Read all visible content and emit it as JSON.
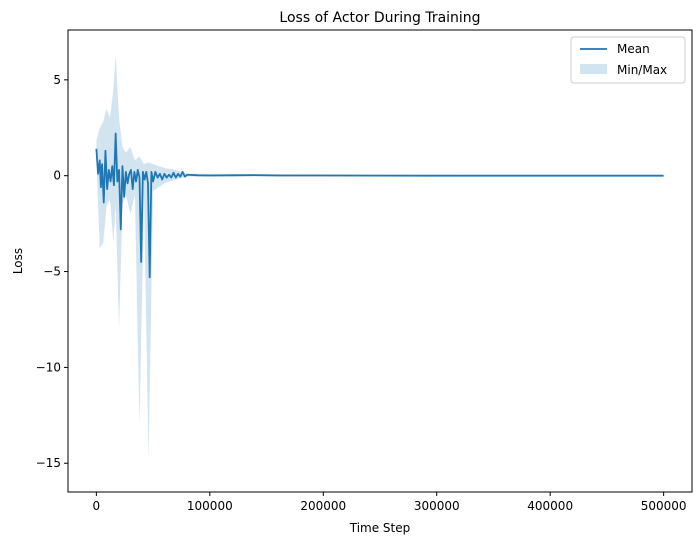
{
  "chart_data": {
    "type": "line",
    "title": "Loss of Actor During Training",
    "xlabel": "Time Step",
    "ylabel": "Loss",
    "xlim": [
      -25000,
      525000
    ],
    "ylim": [
      -16.5,
      7.6
    ],
    "x_ticks": [
      0,
      100000,
      200000,
      300000,
      400000,
      500000
    ],
    "x_tick_labels": [
      "0",
      "100000",
      "200000",
      "300000",
      "400000",
      "500000"
    ],
    "y_ticks": [
      5,
      0,
      -5,
      -10,
      -15
    ],
    "y_tick_labels": [
      "5",
      "0",
      "−5",
      "−10",
      "−15"
    ],
    "grid": false,
    "legend_position": "top-right",
    "colors": {
      "mean": "#1f77b4",
      "band": "#1f77b4"
    },
    "series": [
      {
        "name": "Mean",
        "style": "line",
        "x": [
          0,
          1500,
          3000,
          4000,
          5000,
          6500,
          8000,
          9500,
          11000,
          12500,
          14000,
          15500,
          17000,
          18500,
          20000,
          21500,
          23000,
          24500,
          26000,
          27500,
          29000,
          30500,
          32000,
          33500,
          35000,
          36500,
          38000,
          39500,
          41000,
          42500,
          44000,
          45500,
          47000,
          48500,
          50000,
          52000,
          54000,
          56000,
          58000,
          60000,
          62000,
          64000,
          66000,
          68000,
          70000,
          72000,
          74000,
          76000,
          78000,
          80000,
          90000,
          100000,
          120000,
          140000,
          160000,
          200000,
          300000,
          400000,
          500000
        ],
        "y": [
          1.4,
          0.1,
          0.8,
          -0.6,
          0.6,
          -1.4,
          1.3,
          -0.7,
          0.3,
          -0.3,
          0.5,
          -0.5,
          2.2,
          -0.3,
          0.3,
          -2.8,
          0.5,
          -1.1,
          0.2,
          -0.4,
          0.1,
          0.3,
          -0.7,
          0.2,
          -0.3,
          0.3,
          -0.1,
          -4.5,
          0.2,
          -0.2,
          0.2,
          -0.4,
          -5.3,
          0.2,
          -0.3,
          0.2,
          -0.1,
          0.1,
          -0.2,
          0.1,
          -0.1,
          0.05,
          -0.1,
          0.15,
          -0.1,
          0.1,
          -0.05,
          0.2,
          -0.05,
          0.05,
          0.02,
          0.01,
          0.02,
          0.03,
          0.01,
          0.01,
          0.0,
          0.0,
          0.0
        ]
      },
      {
        "name": "Min/Max",
        "style": "band",
        "x": [
          0,
          3000,
          6000,
          9000,
          12000,
          15000,
          17000,
          20000,
          23000,
          26000,
          30000,
          34000,
          38000,
          42000,
          46000,
          50000,
          55000,
          60000,
          70000,
          80000,
          500000
        ],
        "min": [
          0.9,
          -3.8,
          -3.5,
          -1.6,
          -1.2,
          -3.5,
          -1.5,
          -8.0,
          -1.5,
          -1.0,
          -2.0,
          -1.0,
          -13.0,
          -1.0,
          -14.8,
          -0.8,
          -0.6,
          -0.4,
          -0.2,
          -0.05,
          0.0
        ],
        "max": [
          1.8,
          2.5,
          2.8,
          3.5,
          3.0,
          4.5,
          6.3,
          3.0,
          1.5,
          1.2,
          1.5,
          0.8,
          1.0,
          0.6,
          0.7,
          0.6,
          0.5,
          0.4,
          0.3,
          0.1,
          0.0
        ]
      }
    ]
  }
}
